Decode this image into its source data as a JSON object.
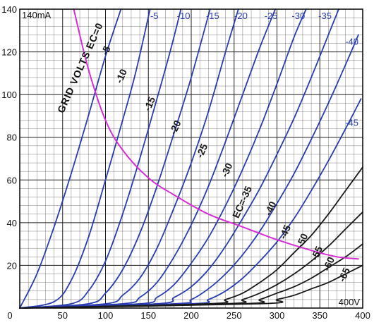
{
  "chart_data": {
    "type": "line",
    "title": "",
    "xlabel": "",
    "ylabel": "",
    "x_unit_label": "400V",
    "y_unit_label": "140mA",
    "xlim": [
      0,
      400
    ],
    "ylim": [
      0,
      140
    ],
    "x_ticks": [
      0,
      50,
      100,
      150,
      200,
      250,
      300,
      350,
      400
    ],
    "x_tick_labels": [
      "0",
      "50",
      "100",
      "150",
      "200",
      "250",
      "300",
      "350",
      "400"
    ],
    "y_ticks": [
      20,
      40,
      60,
      80,
      100,
      120,
      140
    ],
    "y_tick_labels": [
      "20",
      "40",
      "60",
      "80",
      "100",
      "120",
      "140"
    ],
    "grid": true,
    "grid_minor_x_step": 10,
    "grid_minor_y_step": 4,
    "colors": {
      "blue_curves": "#2a3db0",
      "black_curves": "#1a1a1a",
      "load_line": "#d62fd6",
      "grid": "#555555",
      "background": "#ffffff"
    },
    "rotated_label": "GRID VOLTS EC=0",
    "series_label_color": "#1a1a1a",
    "top_labels_color": "#2a3db0",
    "series": [
      {
        "name": "0",
        "label": "0",
        "color": "#2a3db0",
        "x": [
          0,
          20,
          40,
          60,
          80,
          100,
          118
        ],
        "y": [
          0,
          16,
          38,
          63,
          90,
          118,
          140
        ]
      },
      {
        "name": "-5",
        "label": "-5",
        "color": "#2a3db0",
        "x": [
          0,
          40,
          60,
          80,
          100,
          120,
          135,
          152
        ],
        "y": [
          0,
          3,
          13,
          33,
          60,
          88,
          110,
          140
        ]
      },
      {
        "name": "-10",
        "label": "-10",
        "color": "#2a3db0",
        "x": [
          0,
          60,
          80,
          100,
          120,
          140,
          160,
          176,
          188
        ],
        "y": [
          0,
          2,
          8,
          22,
          44,
          70,
          98,
          121,
          140
        ]
      },
      {
        "name": "-15",
        "label": "-15",
        "color": "#2a3db0",
        "x": [
          0,
          80,
          100,
          120,
          140,
          160,
          180,
          200,
          222
        ],
        "y": [
          0,
          2,
          7,
          18,
          35,
          57,
          82,
          108,
          140
        ]
      },
      {
        "name": "-20",
        "label": "-20",
        "color": "#2a3db0",
        "x": [
          0,
          100,
          120,
          140,
          160,
          180,
          200,
          220,
          240,
          255
        ],
        "y": [
          0,
          2,
          6,
          14,
          28,
          47,
          68,
          92,
          120,
          140
        ]
      },
      {
        "name": "-25",
        "label": "-25",
        "color": "#2a3db0",
        "x": [
          0,
          120,
          140,
          160,
          180,
          200,
          220,
          240,
          260,
          280,
          298
        ],
        "y": [
          0,
          2,
          5,
          12,
          24,
          39,
          57,
          78,
          100,
          122,
          140
        ]
      },
      {
        "name": "-30",
        "label": "-30",
        "color": "#2a3db0",
        "x": [
          0,
          140,
          160,
          180,
          200,
          220,
          240,
          260,
          280,
          300,
          320,
          334
        ],
        "y": [
          0,
          2,
          5,
          11,
          21,
          33,
          48,
          65,
          84,
          105,
          127,
          140
        ]
      },
      {
        "name": "-35",
        "label": "-35",
        "color": "#2a3db0",
        "x": [
          0,
          160,
          180,
          200,
          220,
          240,
          260,
          280,
          300,
          320,
          340,
          360,
          372
        ],
        "y": [
          0,
          2,
          5,
          10,
          18,
          29,
          42,
          56,
          72,
          89,
          108,
          128,
          140
        ]
      },
      {
        "name": "-40",
        "label": "-40",
        "color": "#2a3db0",
        "x": [
          0,
          180,
          200,
          220,
          240,
          260,
          280,
          300,
          320,
          340,
          360,
          380,
          395
        ],
        "y": [
          0,
          2,
          4,
          9,
          16,
          25,
          36,
          49,
          63,
          79,
          96,
          114,
          128
        ]
      },
      {
        "name": "-45",
        "label": "-45",
        "color": "#2a3db0",
        "x": [
          0,
          200,
          220,
          240,
          260,
          280,
          300,
          320,
          340,
          360,
          380,
          398
        ],
        "y": [
          0,
          2,
          4,
          8,
          14,
          22,
          31,
          42,
          55,
          69,
          84,
          98
        ]
      },
      {
        "name": "-50",
        "label": "-50",
        "color": "#1a1a1a",
        "x": [
          0,
          220,
          240,
          260,
          280,
          300,
          320,
          340,
          360,
          380,
          400
        ],
        "y": [
          0,
          2,
          4,
          7,
          12,
          18,
          26,
          34,
          44,
          55,
          66
        ]
      },
      {
        "name": "-55",
        "label": "-55",
        "color": "#1a1a1a",
        "x": [
          0,
          240,
          260,
          280,
          300,
          320,
          340,
          360,
          380,
          400
        ],
        "y": [
          0,
          2,
          4,
          7,
          11,
          16,
          22,
          29,
          37,
          45
        ]
      },
      {
        "name": "-60",
        "label": "-60",
        "color": "#1a1a1a",
        "x": [
          0,
          260,
          280,
          300,
          320,
          340,
          360,
          380,
          400
        ],
        "y": [
          0,
          2,
          4,
          7,
          10,
          14,
          19,
          24,
          30
        ]
      },
      {
        "name": "-65",
        "label": "-65",
        "color": "#1a1a1a",
        "x": [
          0,
          280,
          300,
          320,
          340,
          360,
          380,
          400
        ],
        "y": [
          0,
          2,
          4,
          6,
          9,
          12,
          16,
          20
        ]
      },
      {
        "name": "load",
        "label": "",
        "color": "#d62fd6",
        "x": [
          63,
          80,
          100,
          120,
          150,
          180,
          220,
          260,
          300,
          340,
          370,
          395
        ],
        "y": [
          140,
          112,
          88,
          74,
          61,
          53,
          44,
          38,
          32,
          27,
          24,
          23
        ]
      }
    ],
    "top_labels": [
      {
        "text": "-5",
        "x": 157
      },
      {
        "text": "-10",
        "x": 191
      },
      {
        "text": "-15",
        "x": 225
      },
      {
        "text": "-20",
        "x": 258
      },
      {
        "text": "-25",
        "x": 293
      },
      {
        "text": "-30",
        "x": 325
      },
      {
        "text": "-35",
        "x": 356
      }
    ],
    "right_labels": [
      {
        "text": "-40",
        "y": 125
      },
      {
        "text": "-45",
        "y": 87
      }
    ],
    "inline_labels": [
      {
        "text": "-5",
        "x": 104,
        "y": 120
      },
      {
        "text": "-10",
        "x": 122,
        "y": 108
      },
      {
        "text": "-15",
        "x": 155,
        "y": 95
      },
      {
        "text": "-20",
        "x": 185,
        "y": 84
      },
      {
        "text": "-25",
        "x": 216,
        "y": 73
      },
      {
        "text": "-30",
        "x": 245,
        "y": 64
      },
      {
        "text": "EC=-35",
        "x": 263,
        "y": 49
      },
      {
        "text": "-40",
        "x": 296,
        "y": 46
      },
      {
        "text": "-45",
        "x": 313,
        "y": 35
      },
      {
        "text": "-50",
        "x": 333,
        "y": 31
      },
      {
        "text": "-55",
        "x": 350,
        "y": 25
      },
      {
        "text": "-60",
        "x": 364,
        "y": 20
      },
      {
        "text": "-65",
        "x": 382,
        "y": 15
      }
    ]
  }
}
